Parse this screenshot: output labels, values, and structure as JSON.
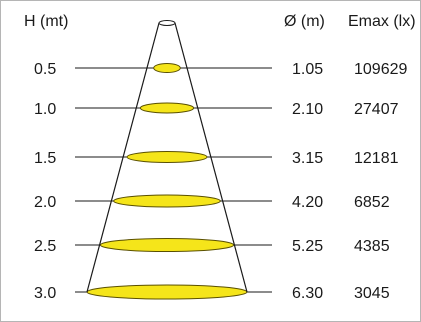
{
  "header": {
    "height_label": "H (mt)",
    "diameter_label": "Ø (m)",
    "emax_label": "Emax (lx)"
  },
  "colors": {
    "ellipse_fill": "#f5e51a",
    "ellipse_stroke": "#5a5000",
    "line": "#1a1a1a",
    "border": "#b5b5b5"
  },
  "rows": [
    {
      "h": "0.5",
      "d": "1.05",
      "e": "109629",
      "diameter_m": 1.05
    },
    {
      "h": "1.0",
      "d": "2.10",
      "e": "27407",
      "diameter_m": 2.1
    },
    {
      "h": "1.5",
      "d": "3.15",
      "e": "12181",
      "diameter_m": 3.15
    },
    {
      "h": "2.0",
      "d": "4.20",
      "e": "6852",
      "diameter_m": 4.2
    },
    {
      "h": "2.5",
      "d": "5.25",
      "e": "4385",
      "diameter_m": 5.25
    },
    {
      "h": "3.0",
      "d": "6.30",
      "e": "3045",
      "diameter_m": 6.3
    }
  ]
}
